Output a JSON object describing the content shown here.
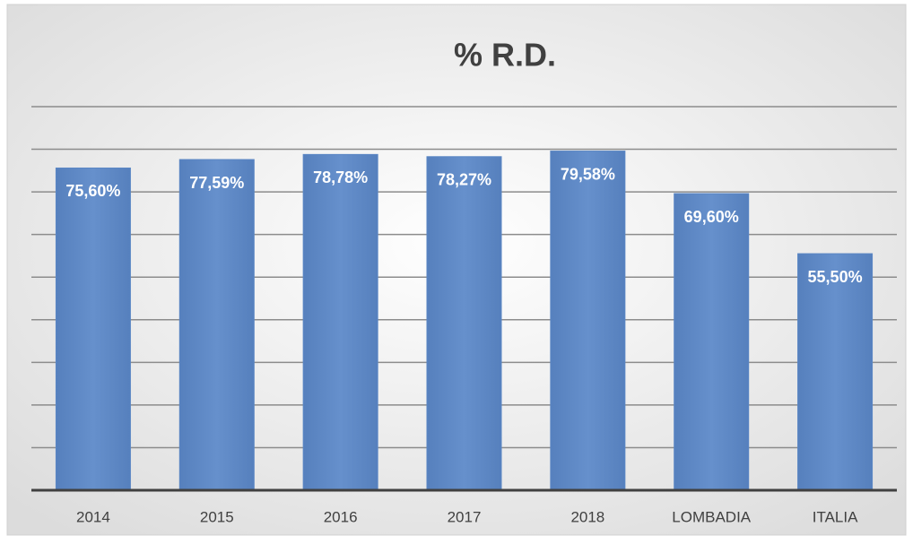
{
  "chart_data": {
    "type": "bar",
    "title": "% R.D.",
    "categories": [
      "2014",
      "2015",
      "2016",
      "2017",
      "2018",
      "LOMBADIA",
      "ITALIA"
    ],
    "values": [
      75.6,
      77.59,
      78.78,
      78.27,
      79.58,
      69.6,
      55.5
    ],
    "value_labels": [
      "75,60%",
      "77,59%",
      "78,78%",
      "78,27%",
      "79,58%",
      "69,60%",
      "55,50%"
    ],
    "color": "#5a86c4",
    "ylim": [
      0,
      90
    ],
    "yticks": [
      0,
      10,
      20,
      30,
      40,
      50,
      60,
      70,
      80,
      90
    ],
    "grid": true
  }
}
